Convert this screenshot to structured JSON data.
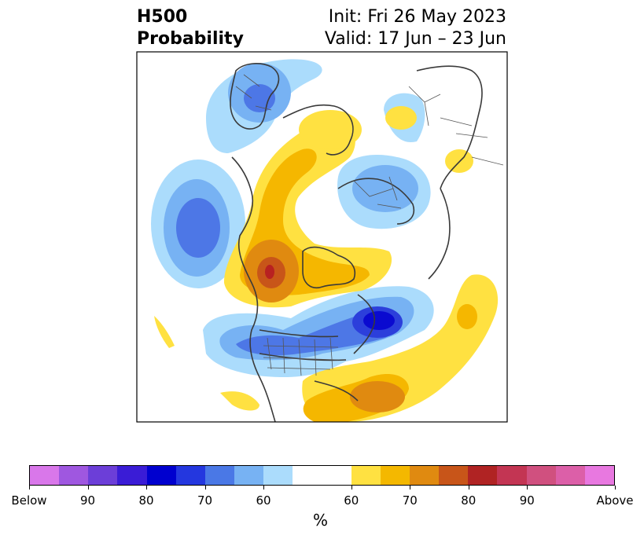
{
  "title": {
    "left_line1": "H500",
    "left_line2": "Probability",
    "right_line1": "Init: Fri 26 May 2023",
    "right_line2": "Valid: 17 Jun – 23 Jun"
  },
  "map": {
    "description_type": "polar stereographic North America/Arctic anomaly probability map",
    "colors": {
      "blue_light": "#abdcfc",
      "blue_mid": "#77b2f3",
      "blue_medium": "#4d77e6",
      "blue_strong": "#2c3fdb",
      "blue_deep": "#0a0ad0",
      "yellow_light": "#ffe141",
      "yellow_mid": "#f5b700",
      "orange": "#e08a10",
      "orange_dark": "#c85519",
      "red": "#b82121",
      "border": "#3a3a3a"
    }
  },
  "colorbar": {
    "tick_labels": [
      "Below",
      "90",
      "80",
      "70",
      "60",
      "60",
      "70",
      "80",
      "90",
      "Above"
    ],
    "unit_label": "%",
    "segments": [
      "#d977ea",
      "#9f57e0",
      "#6c3ed8",
      "#3a1cd6",
      "#0000cf",
      "#2437df",
      "#4a78e6",
      "#77b2f3",
      "#abdcfc",
      "#ffffff",
      "#ffe141",
      "#f4b800",
      "#e08a10",
      "#c85519",
      "#b02323",
      "#c33553",
      "#d0507f",
      "#dc5fa8",
      "#e878e0"
    ]
  }
}
